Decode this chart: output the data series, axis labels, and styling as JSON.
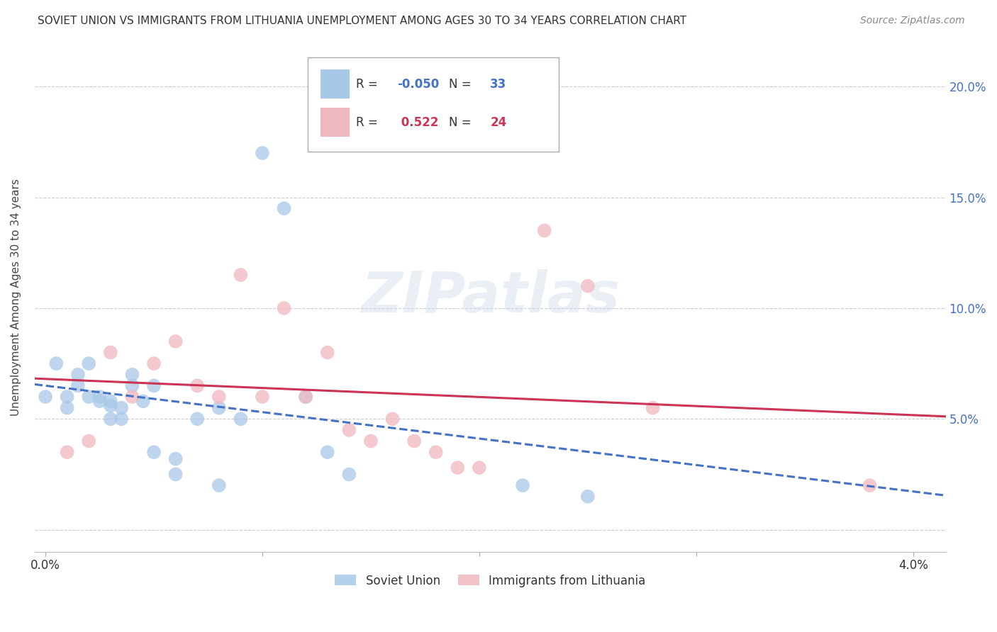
{
  "title": "SOVIET UNION VS IMMIGRANTS FROM LITHUANIA UNEMPLOYMENT AMONG AGES 30 TO 34 YEARS CORRELATION CHART",
  "source": "Source: ZipAtlas.com",
  "ylabel": "Unemployment Among Ages 30 to 34 years",
  "soviet_union_x": [
    0.0,
    0.0005,
    0.001,
    0.001,
    0.0015,
    0.0015,
    0.002,
    0.002,
    0.0025,
    0.0025,
    0.003,
    0.003,
    0.003,
    0.0035,
    0.0035,
    0.004,
    0.004,
    0.0045,
    0.005,
    0.005,
    0.006,
    0.006,
    0.007,
    0.008,
    0.008,
    0.009,
    0.01,
    0.011,
    0.012,
    0.013,
    0.014,
    0.022,
    0.025
  ],
  "soviet_union_y": [
    0.06,
    0.075,
    0.06,
    0.055,
    0.07,
    0.065,
    0.075,
    0.06,
    0.06,
    0.058,
    0.056,
    0.05,
    0.058,
    0.055,
    0.05,
    0.07,
    0.065,
    0.058,
    0.065,
    0.035,
    0.032,
    0.025,
    0.05,
    0.02,
    0.055,
    0.05,
    0.17,
    0.145,
    0.06,
    0.035,
    0.025,
    0.02,
    0.015
  ],
  "lithuania_x": [
    0.001,
    0.002,
    0.003,
    0.004,
    0.005,
    0.006,
    0.007,
    0.008,
    0.009,
    0.01,
    0.011,
    0.012,
    0.013,
    0.014,
    0.015,
    0.016,
    0.017,
    0.018,
    0.019,
    0.02,
    0.023,
    0.025,
    0.028,
    0.038
  ],
  "lithuania_y": [
    0.035,
    0.04,
    0.08,
    0.06,
    0.075,
    0.085,
    0.065,
    0.06,
    0.115,
    0.06,
    0.1,
    0.06,
    0.08,
    0.045,
    0.04,
    0.05,
    0.04,
    0.035,
    0.028,
    0.028,
    0.135,
    0.11,
    0.055,
    0.02
  ],
  "xlim": [
    -0.0005,
    0.0415
  ],
  "ylim": [
    -0.01,
    0.22
  ],
  "yticks": [
    0.0,
    0.05,
    0.1,
    0.15,
    0.2
  ],
  "ytick_labels": [
    "",
    "5.0%",
    "10.0%",
    "15.0%",
    "20.0%"
  ],
  "xticks": [
    0.0,
    0.01,
    0.02,
    0.03,
    0.04
  ],
  "xtick_labels": [
    "0.0%",
    "",
    "",
    "",
    "4.0%"
  ],
  "watermark": "ZIPatlas",
  "blue_scatter_color": "#a8c8e8",
  "pink_scatter_color": "#f0b8c0",
  "blue_line_color": "#4472c4",
  "pink_line_color": "#cc3355",
  "background_color": "#ffffff",
  "grid_color": "#cccccc",
  "right_axis_color": "#4472c4"
}
